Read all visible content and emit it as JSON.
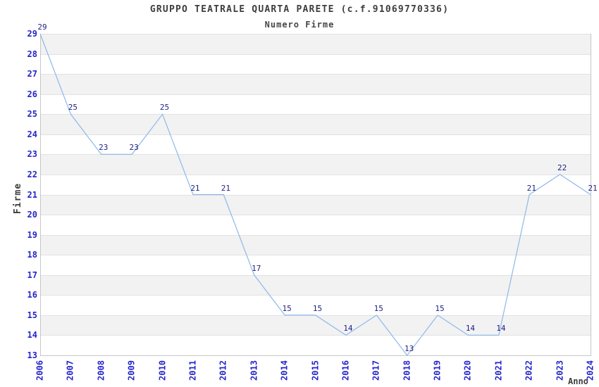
{
  "chart_data": {
    "type": "line",
    "title": "GRUPPO TEATRALE QUARTA PARETE (c.f.91069770336)",
    "subtitle": "Numero Firme",
    "xlabel": "Anno",
    "ylabel": "Firme",
    "categories": [
      "2006",
      "2007",
      "2008",
      "2009",
      "2010",
      "2011",
      "2012",
      "2013",
      "2014",
      "2015",
      "2016",
      "2017",
      "2018",
      "2019",
      "2020",
      "2021",
      "2022",
      "2023",
      "2024"
    ],
    "series": [
      {
        "name": "Numero Firme",
        "values": [
          29,
          25,
          23,
          23,
          25,
          21,
          21,
          17,
          15,
          15,
          14,
          15,
          13,
          15,
          14,
          14,
          21,
          22,
          21
        ]
      }
    ],
    "data_labels_shown": true,
    "ylim": [
      13,
      29
    ],
    "ytick_step": 1,
    "grid": "horizontal-with-alternating-bands",
    "legend_position": "none",
    "colors": {
      "line": "#8cb9e8",
      "tick_label": "#2424cc",
      "data_label": "#1e1e82",
      "band_fill": "#f2f2f2",
      "gridline": "#e2e2e2",
      "axis": "#c6c6c6",
      "title_text": "#3e3e3e"
    }
  }
}
